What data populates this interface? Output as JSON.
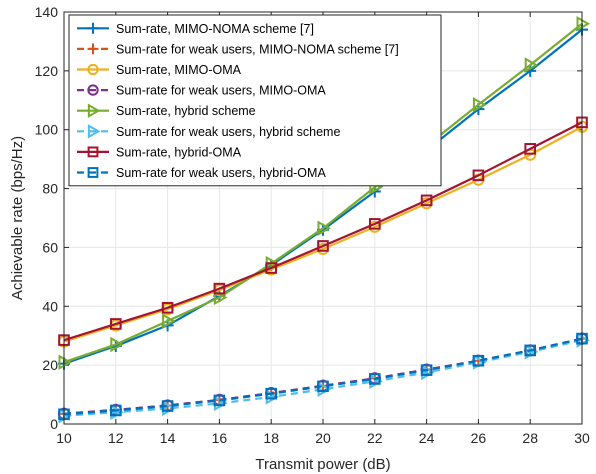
{
  "chart_data": {
    "type": "line",
    "title": "",
    "xlabel": "Transmit power (dB)",
    "ylabel": "Achievable rate (bps/Hz)",
    "xlim": [
      10,
      30
    ],
    "ylim": [
      0,
      140
    ],
    "xticks": [
      10,
      12,
      14,
      16,
      18,
      20,
      22,
      24,
      26,
      28,
      30
    ],
    "yticks": [
      0,
      20,
      40,
      60,
      80,
      100,
      120,
      140
    ],
    "grid": true,
    "legend_position": "top-left",
    "x": [
      10,
      12,
      14,
      16,
      18,
      20,
      22,
      24,
      26,
      28,
      30
    ],
    "series": [
      {
        "name": "Sum-rate, MIMO-NOMA scheme [7]",
        "color": "#0072BD",
        "dash": "solid",
        "marker": "plus",
        "values": [
          20.5,
          26.5,
          33.5,
          43.5,
          54,
          66,
          79,
          93,
          107,
          120,
          134
        ]
      },
      {
        "name": "Sum-rate for weak users, MIMO-NOMA scheme [7]",
        "color": "#D95319",
        "dash": "dashed",
        "marker": "plus",
        "values": [
          3.5,
          4.8,
          6.3,
          8.2,
          10.5,
          13,
          15.5,
          18.5,
          21.5,
          25,
          29
        ]
      },
      {
        "name": "Sum-rate, MIMO-OMA",
        "color": "#EDB120",
        "dash": "solid",
        "marker": "circle",
        "values": [
          28,
          33.5,
          39,
          45.5,
          52.5,
          59.5,
          67,
          75,
          83,
          91.5,
          101
        ]
      },
      {
        "name": "Sum-rate for weak users, MIMO-OMA",
        "color": "#7E2F8E",
        "dash": "dashed",
        "marker": "circle",
        "values": [
          3.5,
          4.8,
          6.3,
          8.2,
          10.5,
          13,
          15.5,
          18.5,
          21.5,
          25,
          29
        ]
      },
      {
        "name": "Sum-rate, hybrid scheme",
        "color": "#77AC30",
        "dash": "solid",
        "marker": "triangle-right",
        "values": [
          21,
          27,
          35,
          43,
          54.5,
          66.5,
          80.5,
          94.5,
          108.5,
          122,
          136
        ]
      },
      {
        "name": "Sum-rate for weak users, hybrid scheme",
        "color": "#4DBEEE",
        "dash": "dashed",
        "marker": "triangle-right",
        "values": [
          2.8,
          4.0,
          5.3,
          7.0,
          9.2,
          11.8,
          14.5,
          17.5,
          21,
          24.5,
          28.5
        ]
      },
      {
        "name": "Sum-rate, hybrid-OMA",
        "color": "#A2142F",
        "dash": "solid",
        "marker": "square",
        "values": [
          28.5,
          34,
          39.5,
          46,
          53,
          60.5,
          68,
          76,
          84.5,
          93.5,
          102.5
        ]
      },
      {
        "name": "Sum-rate for weak users, hybrid-OMA",
        "color": "#0072BD",
        "dash": "dashed",
        "marker": "square",
        "values": [
          3.3,
          4.6,
          6.1,
          8.0,
          10.3,
          12.8,
          15.3,
          18.3,
          21.5,
          25,
          29
        ]
      }
    ]
  }
}
